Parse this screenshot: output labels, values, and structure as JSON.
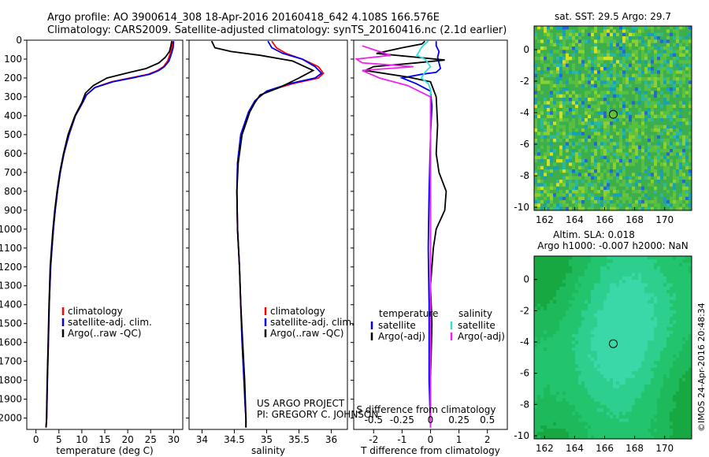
{
  "header": {
    "line1": "Argo profile: AO 3900614_308 18-Apr-2016 20160418_642 4.108S 166.576E",
    "line2": "Climatology: CARS2009. Satellite-adjusted climatology: synTS_20160416.nc (2.1d earlier)"
  },
  "credit": {
    "project": "US ARGO PROJECT",
    "pi": "PI: GREGORY C. JOHNSON",
    "imos": "©IMOS 24-Apr-2016 20:48:34"
  },
  "colors": {
    "climatology": "#ff0000",
    "satellite": "#0000ee",
    "argo": "#000000",
    "sal_satellite": "#33dddd",
    "sal_argo": "#ee22ee"
  },
  "chart_data": [
    {
      "id": "temperature",
      "type": "line",
      "xlabel": "temperature (deg C)",
      "ylabel": "",
      "xlim": [
        -2,
        32
      ],
      "ylim": [
        2060,
        0
      ],
      "xticks": [
        0,
        5,
        10,
        15,
        20,
        25,
        30
      ],
      "xtick_labels": [
        "0",
        "5",
        "10",
        "15",
        "20",
        "25",
        "30"
      ],
      "yticks": [
        0,
        100,
        200,
        300,
        400,
        500,
        600,
        700,
        800,
        900,
        1000,
        1100,
        1200,
        1300,
        1400,
        1500,
        1600,
        1700,
        1800,
        1900,
        2000
      ],
      "ytick_labels": [
        "0",
        "100",
        "200",
        "300",
        "400",
        "500",
        "600",
        "700",
        "800",
        "900",
        "1000",
        "1100",
        "1200",
        "1300",
        "1400",
        "1500",
        "1600",
        "1700",
        "1800",
        "1900",
        "2000"
      ],
      "legend": [
        "climatology",
        "satellite-adj. clim.",
        "Argo(..raw -QC)"
      ],
      "series": [
        {
          "name": "climatology",
          "color": "#ff0000",
          "x": [
            29.8,
            29.6,
            29.2,
            28.7,
            27.8,
            26.5,
            24.5,
            20.5,
            16.5,
            12.8,
            11.0,
            10.2,
            8.6,
            7.2,
            6.1,
            5.3,
            4.7,
            4.2,
            3.8,
            3.5,
            3.2,
            2.9,
            2.7,
            2.5,
            2.35,
            2.2
          ],
          "y": [
            5,
            40,
            75,
            110,
            140,
            160,
            180,
            200,
            220,
            250,
            290,
            330,
            400,
            500,
            600,
            700,
            800,
            900,
            1000,
            1100,
            1200,
            1400,
            1600,
            1800,
            2000,
            2050
          ]
        },
        {
          "name": "satellite-adj. clim.",
          "color": "#0000ee",
          "x": [
            30.0,
            29.9,
            29.5,
            29.0,
            28.0,
            26.8,
            24.8,
            21.0,
            16.8,
            12.9,
            11.0,
            10.2,
            8.6,
            7.2,
            6.1,
            5.3,
            4.7,
            4.2,
            3.8,
            3.5,
            3.2,
            2.9,
            2.7,
            2.5,
            2.35,
            2.2
          ],
          "y": [
            5,
            40,
            75,
            110,
            140,
            160,
            180,
            200,
            220,
            250,
            290,
            330,
            400,
            500,
            600,
            700,
            800,
            900,
            1000,
            1100,
            1200,
            1400,
            1600,
            1800,
            2000,
            2050
          ]
        },
        {
          "name": "Argo(..raw -QC)",
          "color": "#000000",
          "x": [
            29.6,
            29.4,
            29.1,
            28.2,
            26.8,
            24.0,
            20.5,
            15.5,
            12.5,
            10.8,
            10.0,
            8.5,
            7.0,
            6.0,
            5.2,
            4.6,
            4.1,
            3.7,
            3.4,
            3.1,
            2.85,
            2.65,
            2.45,
            2.3,
            2.2
          ],
          "y": [
            5,
            30,
            60,
            90,
            120,
            150,
            170,
            200,
            240,
            280,
            330,
            400,
            500,
            600,
            700,
            800,
            900,
            1000,
            1100,
            1200,
            1400,
            1600,
            1800,
            2000,
            2050
          ]
        }
      ]
    },
    {
      "id": "salinity",
      "type": "line",
      "xlabel": "salinity",
      "ylabel": "",
      "xlim": [
        33.8,
        36.25
      ],
      "ylim": [
        2060,
        0
      ],
      "xticks": [
        34,
        34.5,
        35,
        35.5,
        36
      ],
      "xtick_labels": [
        "34",
        "34.5",
        "35",
        "35.5",
        "36"
      ],
      "legend": [
        "climatology",
        "satellite-adj. clim.",
        "Argo(..raw -QC)"
      ],
      "series": [
        {
          "name": "climatology",
          "color": "#ff0000",
          "x": [
            35.08,
            35.15,
            35.3,
            35.55,
            35.8,
            35.88,
            35.8,
            35.4,
            35.0,
            34.82,
            34.72,
            34.6,
            34.55,
            34.54,
            34.55,
            34.58,
            34.6,
            34.62,
            34.65,
            34.67,
            34.68,
            34.68
          ],
          "y": [
            5,
            40,
            70,
            100,
            140,
            175,
            200,
            230,
            270,
            320,
            380,
            500,
            650,
            800,
            1000,
            1200,
            1400,
            1600,
            1800,
            1950,
            2000,
            2050
          ]
        },
        {
          "name": "satellite-adj. clim.",
          "color": "#0000ee",
          "x": [
            35.02,
            35.08,
            35.25,
            35.55,
            35.75,
            35.85,
            35.75,
            35.35,
            35.0,
            34.82,
            34.72,
            34.6,
            34.55,
            34.54,
            34.55,
            34.58,
            34.6,
            34.62,
            34.65,
            34.67,
            34.68,
            34.68
          ],
          "y": [
            5,
            40,
            70,
            100,
            140,
            175,
            200,
            230,
            270,
            320,
            380,
            500,
            650,
            800,
            1000,
            1200,
            1400,
            1600,
            1800,
            1950,
            2000,
            2050
          ]
        },
        {
          "name": "Argo(..raw -QC)",
          "color": "#000000",
          "x": [
            34.15,
            34.2,
            34.45,
            34.9,
            35.4,
            35.72,
            35.5,
            35.2,
            34.9,
            34.82,
            34.74,
            34.62,
            34.56,
            34.54,
            34.55,
            34.58,
            34.6,
            34.63,
            34.66,
            34.68,
            34.68
          ],
          "y": [
            5,
            40,
            60,
            80,
            110,
            160,
            200,
            250,
            290,
            330,
            380,
            500,
            650,
            800,
            1000,
            1200,
            1400,
            1600,
            1800,
            2000,
            2050
          ]
        }
      ]
    },
    {
      "id": "difference",
      "type": "line",
      "xlabel": "T difference from climatology",
      "x2label": "S difference from climatology",
      "ylabel": "",
      "xlim": [
        -2.7,
        2.7
      ],
      "ylim": [
        2060,
        0
      ],
      "xticks": [
        -2,
        -1,
        0,
        1,
        2
      ],
      "xtick_labels": [
        "-2",
        "-1",
        "0",
        "1",
        "2"
      ],
      "x2ticks": [
        -0.5,
        -0.25,
        0,
        0.25,
        0.5
      ],
      "x2tick_labels": [
        "-0.5",
        "-0.25",
        "0",
        "0.25",
        "0.5"
      ],
      "x2lim": [
        -0.675,
        0.675
      ],
      "legend_headers": [
        "temperature",
        "salinity"
      ],
      "legend": [
        "satellite",
        "Argo(-adj)",
        "satellite",
        "Argo(-adj)"
      ],
      "series": [
        {
          "name": "satellite",
          "group": "temperature",
          "color": "#0000ee",
          "axis": "T",
          "x": [
            0.2,
            0.2,
            0.3,
            0.25,
            0.3,
            0.35,
            0.2,
            -0.3,
            -1.0,
            -0.5,
            0.0,
            0.05,
            0.0,
            -0.05,
            -0.08,
            -0.05,
            -0.05,
            0.0
          ],
          "y": [
            5,
            30,
            60,
            90,
            120,
            150,
            170,
            180,
            200,
            230,
            270,
            350,
            500,
            800,
            1100,
            1400,
            1800,
            2050
          ]
        },
        {
          "name": "Argo(-adj)",
          "group": "temperature",
          "color": "#000000",
          "axis": "T",
          "x": [
            -0.2,
            -0.3,
            -1.0,
            -1.9,
            -0.5,
            0.5,
            -0.5,
            -2.0,
            -2.3,
            -0.8,
            0.0,
            0.2,
            0.25,
            0.2,
            0.3,
            0.55,
            0.5,
            0.2,
            0.1,
            0.0,
            0.05,
            0.0,
            0.0
          ],
          "y": [
            5,
            20,
            40,
            70,
            90,
            105,
            120,
            140,
            160,
            195,
            220,
            300,
            450,
            600,
            700,
            800,
            900,
            1000,
            1100,
            1300,
            1500,
            1800,
            2050
          ]
        },
        {
          "name": "satellite",
          "group": "salinity",
          "color": "#33dddd",
          "axis": "S",
          "x": [
            -0.02,
            -0.05,
            -0.08,
            -0.12,
            -0.05,
            0.0,
            -0.05,
            -0.08,
            -0.02,
            0.0,
            0.0,
            0.0,
            0.0,
            0.0,
            0.0
          ],
          "y": [
            5,
            20,
            40,
            80,
            100,
            140,
            170,
            200,
            230,
            260,
            400,
            800,
            1200,
            1600,
            2050
          ]
        },
        {
          "name": "Argo(-adj)",
          "group": "salinity",
          "color": "#ee22ee",
          "axis": "S",
          "x": [
            -0.6,
            -0.45,
            -0.35,
            -0.65,
            -0.6,
            -0.15,
            -0.6,
            -0.45,
            -0.2,
            0.0,
            0.0,
            0.0,
            0.0
          ],
          "y": [
            30,
            60,
            80,
            100,
            120,
            140,
            160,
            200,
            240,
            300,
            600,
            1200,
            2050
          ]
        }
      ]
    },
    {
      "id": "sst_map",
      "type": "heatmap",
      "title": "sat. SST: 29.5 Argo: 29.7",
      "xlim": [
        161.3,
        171.8
      ],
      "ylim": [
        -10.2,
        1.5
      ],
      "xticks": [
        162,
        164,
        166,
        168,
        170
      ],
      "xtick_labels": [
        "162",
        "164",
        "166",
        "168",
        "170"
      ],
      "yticks": [
        0,
        -2,
        -4,
        -6,
        -8,
        -10
      ],
      "ytick_labels": [
        "0",
        "-2",
        "-4",
        "-6",
        "-8",
        "-10"
      ],
      "marker": {
        "lon": 166.576,
        "lat": -4.108
      }
    },
    {
      "id": "sla_map",
      "type": "heatmap",
      "title": "Altim. SLA: 0.018",
      "subtitle": "Argo h1000: -0.007 h2000: NaN",
      "xlim": [
        161.3,
        171.8
      ],
      "ylim": [
        -10.2,
        1.5
      ],
      "xticks": [
        162,
        164,
        166,
        168,
        170
      ],
      "xtick_labels": [
        "162",
        "164",
        "166",
        "168",
        "170"
      ],
      "yticks": [
        0,
        -2,
        -4,
        -6,
        -8,
        -10
      ],
      "ytick_labels": [
        "0",
        "-2",
        "-4",
        "-6",
        "-8",
        "-10"
      ],
      "marker": {
        "lon": 166.576,
        "lat": -4.108
      }
    }
  ]
}
